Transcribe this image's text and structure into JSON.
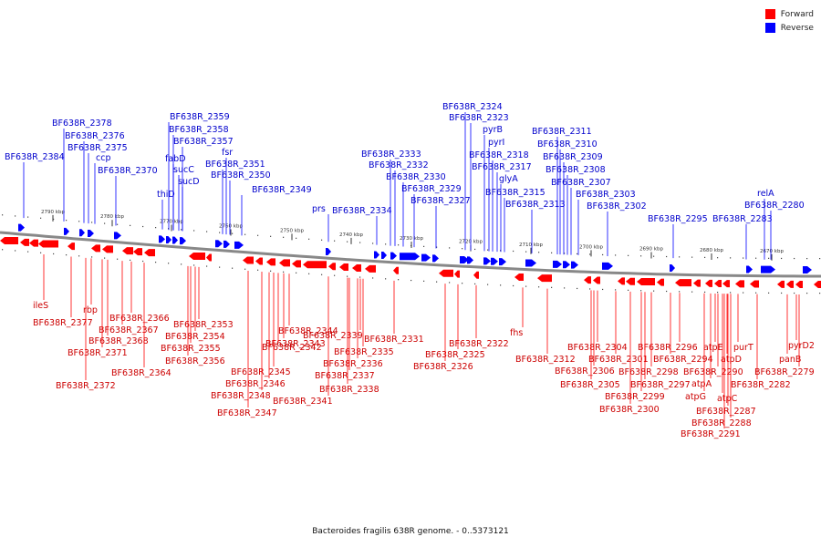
{
  "legend": {
    "forward_label": "Forward",
    "reverse_label": "Reverse",
    "forward_color": "#ff0000",
    "reverse_color": "#0000ff"
  },
  "footer": "Bacteroides fragilis 638R genome. - 0..5373121",
  "scale_labels": [
    "2790 kbp",
    "2780 kbp",
    "2770 kbp",
    "2760 kbp",
    "2750 kbp",
    "2740 kbp",
    "2730 kbp",
    "2720 kbp",
    "2710 kbp",
    "2700 kbp",
    "2690 kbp",
    "2680 kbp",
    "2670 kbp"
  ],
  "reverse_genes": [
    "BF638R_2384",
    "BF638R_2378",
    "BF638R_2376",
    "BF638R_2375",
    "ccp",
    "BF638R_2370",
    "thiD",
    "fabD",
    "sucC",
    "sucD",
    "BF638R_2359",
    "BF638R_2358",
    "BF638R_2357",
    "fsr",
    "BF638R_2351",
    "BF638R_2350",
    "BF638R_2349",
    "prs",
    "BF638R_2334",
    "BF638R_2333",
    "BF638R_2332",
    "BF638R_2330",
    "BF638R_2329",
    "BF638R_2327",
    "BF638R_2324",
    "BF638R_2323",
    "pyrB",
    "pyrI",
    "BF638R_2318",
    "BF638R_2317",
    "glyA",
    "BF638R_2315",
    "BF638R_2313",
    "BF638R_2311",
    "BF638R_2310",
    "BF638R_2309",
    "BF638R_2308",
    "BF638R_2307",
    "BF638R_2303",
    "BF638R_2302",
    "BF638R_2295",
    "BF638R_2283",
    "relA",
    "BF638R_2280"
  ],
  "forward_genes": [
    "ileS",
    "BF638R_2377",
    "rbp",
    "BF638R_2366",
    "BF638R_2367",
    "BF638R_2368",
    "BF638R_2371",
    "BF638R_2372",
    "BF638R_2364",
    "BF638R_2353",
    "BF638R_2354",
    "BF638R_2355",
    "BF638R_2356",
    "BF638R_2344",
    "BF638R_2343",
    "BF638R_2342",
    "BF638R_2345",
    "BF638R_2346",
    "BF638R_2348",
    "BF638R_2347",
    "BF638R_2341",
    "BF638R_2339",
    "BF638R_2335",
    "BF638R_2336",
    "BF638R_2337",
    "BF638R_2338",
    "BF638R_2331",
    "BF638R_2322",
    "BF638R_2325",
    "BF638R_2326",
    "fhs",
    "BF638R_2312",
    "BF638R_2304",
    "BF638R_2301",
    "BF638R_2306",
    "BF638R_2305",
    "BF638R_2296",
    "BF638R_2294",
    "BF638R_2298",
    "BF638R_2297",
    "BF638R_2299",
    "BF638R_2300",
    "atpE",
    "atpD",
    "purT",
    "BF638R_2290",
    "atpA",
    "atpG",
    "atpC",
    "BF638R_2287",
    "BF638R_2288",
    "BF638R_2291",
    "BF638R_2282",
    "panB",
    "pyrD2",
    "BF638R_2279"
  ]
}
